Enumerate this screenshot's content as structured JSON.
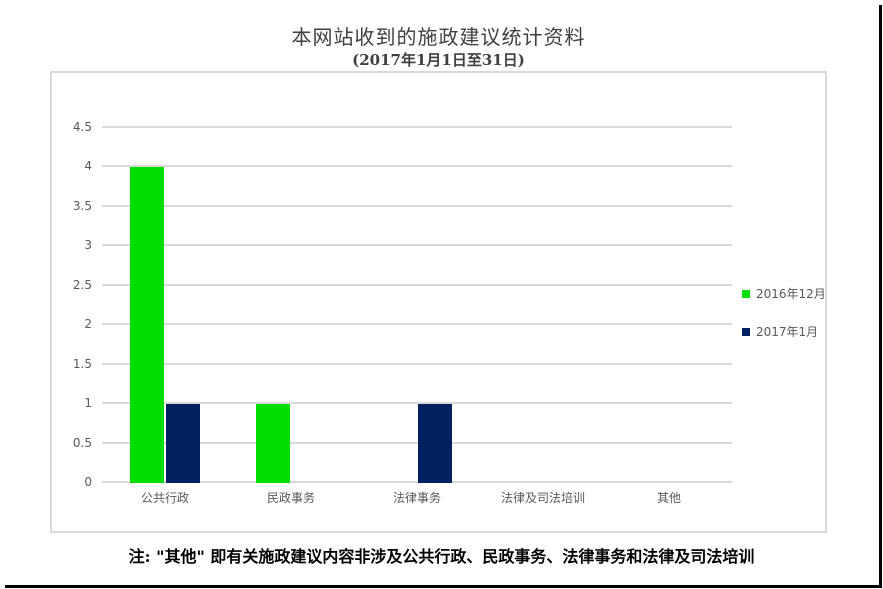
{
  "page": {
    "note": "注: \"其他\" 即有关施政建议内容非涉及公共行政、民政事务、法律事务和法律及司法培训"
  },
  "chart_data": {
    "type": "bar",
    "title": "本网站收到的施政建议统计资料",
    "subtitle": "(2017年1月1日至31日)",
    "categories": [
      "公共行政",
      "民政事务",
      "法律事务",
      "法律及司法培训",
      "其他"
    ],
    "series": [
      {
        "name": "2016年12月",
        "color": "#00df00",
        "values": [
          4,
          1,
          0,
          0,
          0
        ]
      },
      {
        "name": "2017年1月",
        "color": "#002060",
        "values": [
          1,
          0,
          1,
          0,
          0
        ]
      }
    ],
    "ylim": [
      0,
      4.5
    ],
    "ytick_step": 0.5,
    "ytick_labels": [
      "0",
      "0.5",
      "1",
      "1.5",
      "2",
      "2.5",
      "3",
      "3.5",
      "4",
      "4.5"
    ],
    "xlabel": "",
    "ylabel": "",
    "grid": "horizontal",
    "gridline_color": "#d9d9d9",
    "axis_text_color": "#595959",
    "legend_position": "right"
  }
}
